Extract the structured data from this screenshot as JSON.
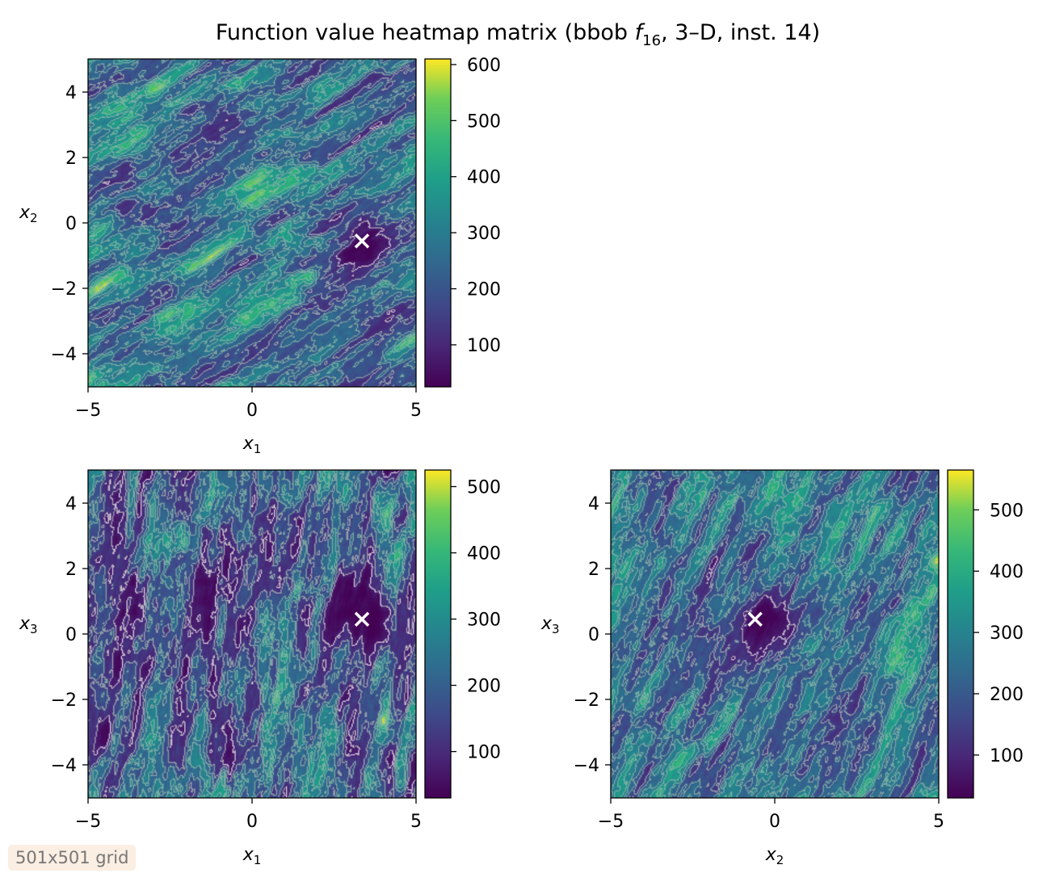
{
  "figure": {
    "title_main": "Function value heatmap matrix (bbob ",
    "title_f": "f",
    "title_sub": "16",
    "title_rest": ", 3–D, inst. 14)",
    "badge": "501x501 grid"
  },
  "colormap": "viridis",
  "contour_colors": [
    "#ffffff",
    "#bdbdbd",
    "#8fb8a8"
  ],
  "marker_color": "#ffffff",
  "chart_data": [
    {
      "type": "heatmap",
      "id": "x1-x2",
      "xlabel": "x",
      "xlabel_sub": "1",
      "ylabel": "x",
      "ylabel_sub": "2",
      "xlim": [
        -5,
        5
      ],
      "ylim": [
        -5,
        5
      ],
      "xticks": [
        -5,
        0,
        5
      ],
      "xtick_labels": [
        "−5",
        "0",
        "5"
      ],
      "yticks": [
        -4,
        -2,
        0,
        2,
        4
      ],
      "ytick_labels": [
        "−4",
        "−2",
        "0",
        "2",
        "4"
      ],
      "colorbar": {
        "min": 25,
        "max": 610,
        "ticks": [
          100,
          200,
          300,
          400,
          500,
          600
        ],
        "tick_labels": [
          "100",
          "200",
          "300",
          "400",
          "500",
          "600"
        ]
      },
      "optimum": {
        "x": 3.35,
        "y": -0.55
      },
      "ridge_direction": 30
    },
    {
      "type": "heatmap",
      "id": "x1-x3",
      "xlabel": "x",
      "xlabel_sub": "1",
      "ylabel": "x",
      "ylabel_sub": "3",
      "xlim": [
        -5,
        5
      ],
      "ylim": [
        -5,
        5
      ],
      "xticks": [
        -5,
        0,
        5
      ],
      "xtick_labels": [
        "−5",
        "0",
        "5"
      ],
      "yticks": [
        -4,
        -2,
        0,
        2,
        4
      ],
      "ytick_labels": [
        "−4",
        "−2",
        "0",
        "2",
        "4"
      ],
      "colorbar": {
        "min": 30,
        "max": 525,
        "ticks": [
          100,
          200,
          300,
          400,
          500
        ],
        "tick_labels": [
          "100",
          "200",
          "300",
          "400",
          "500"
        ]
      },
      "optimum": {
        "x": 3.35,
        "y": 0.45
      },
      "ridge_direction": 80
    },
    {
      "type": "heatmap",
      "id": "x2-x3",
      "xlabel": "x",
      "xlabel_sub": "2",
      "ylabel": "x",
      "ylabel_sub": "3",
      "xlim": [
        -5,
        5
      ],
      "ylim": [
        -5,
        5
      ],
      "xticks": [
        -5,
        0,
        5
      ],
      "xtick_labels": [
        "−5",
        "0",
        "5"
      ],
      "yticks": [
        -4,
        -2,
        0,
        2,
        4
      ],
      "ytick_labels": [
        "−4",
        "−2",
        "0",
        "2",
        "4"
      ],
      "colorbar": {
        "min": 30,
        "max": 565,
        "ticks": [
          100,
          200,
          300,
          400,
          500
        ],
        "tick_labels": [
          "100",
          "200",
          "300",
          "400",
          "500"
        ]
      },
      "optimum": {
        "x": -0.6,
        "y": 0.45
      },
      "ridge_direction": 62
    }
  ]
}
